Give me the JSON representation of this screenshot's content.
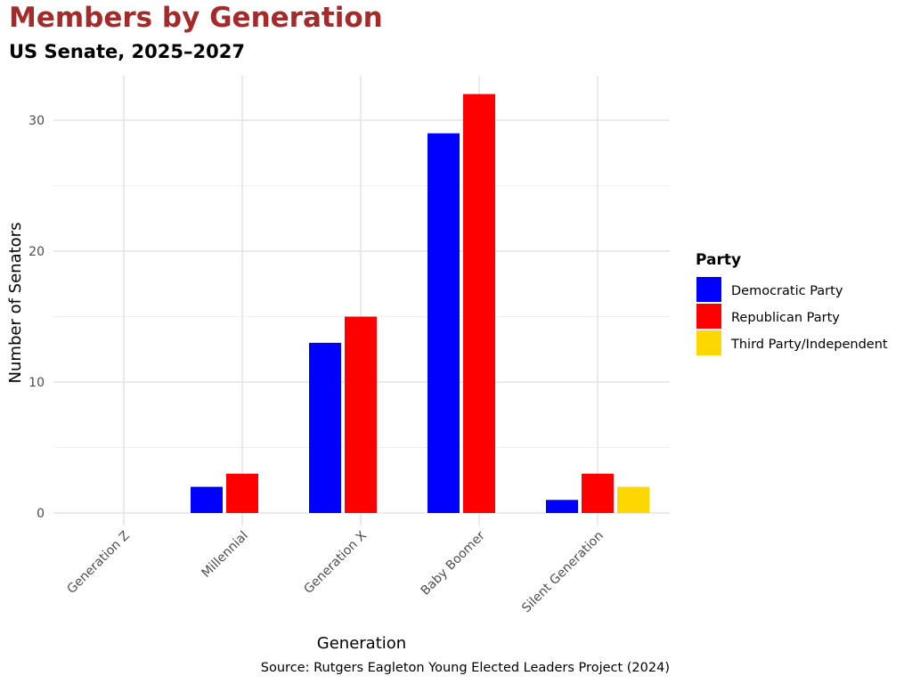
{
  "chart_data": {
    "type": "bar",
    "title": "Members by Generation",
    "subtitle": "US Senate, 2025–2027",
    "xlabel": "Generation",
    "ylabel": "Number of Senators",
    "caption": "Source: Rutgers Eagleton Young Elected Leaders Project (2024)",
    "categories": [
      "Generation Z",
      "Millennial",
      "Generation X",
      "Baby Boomer",
      "Silent Generation"
    ],
    "yticks": [
      0,
      10,
      20,
      30
    ],
    "ylim": [
      -1,
      33.4
    ],
    "grid": true,
    "legend": {
      "title": "Party",
      "position": "right"
    },
    "series": [
      {
        "name": "Democratic Party",
        "color": "#0000ff",
        "values": [
          null,
          2,
          13,
          29,
          1
        ]
      },
      {
        "name": "Republican Party",
        "color": "#ff0000",
        "values": [
          null,
          3,
          15,
          32,
          3
        ]
      },
      {
        "name": "Third Party/Independent",
        "color": "#ffd700",
        "values": [
          null,
          null,
          null,
          null,
          2
        ]
      }
    ]
  }
}
